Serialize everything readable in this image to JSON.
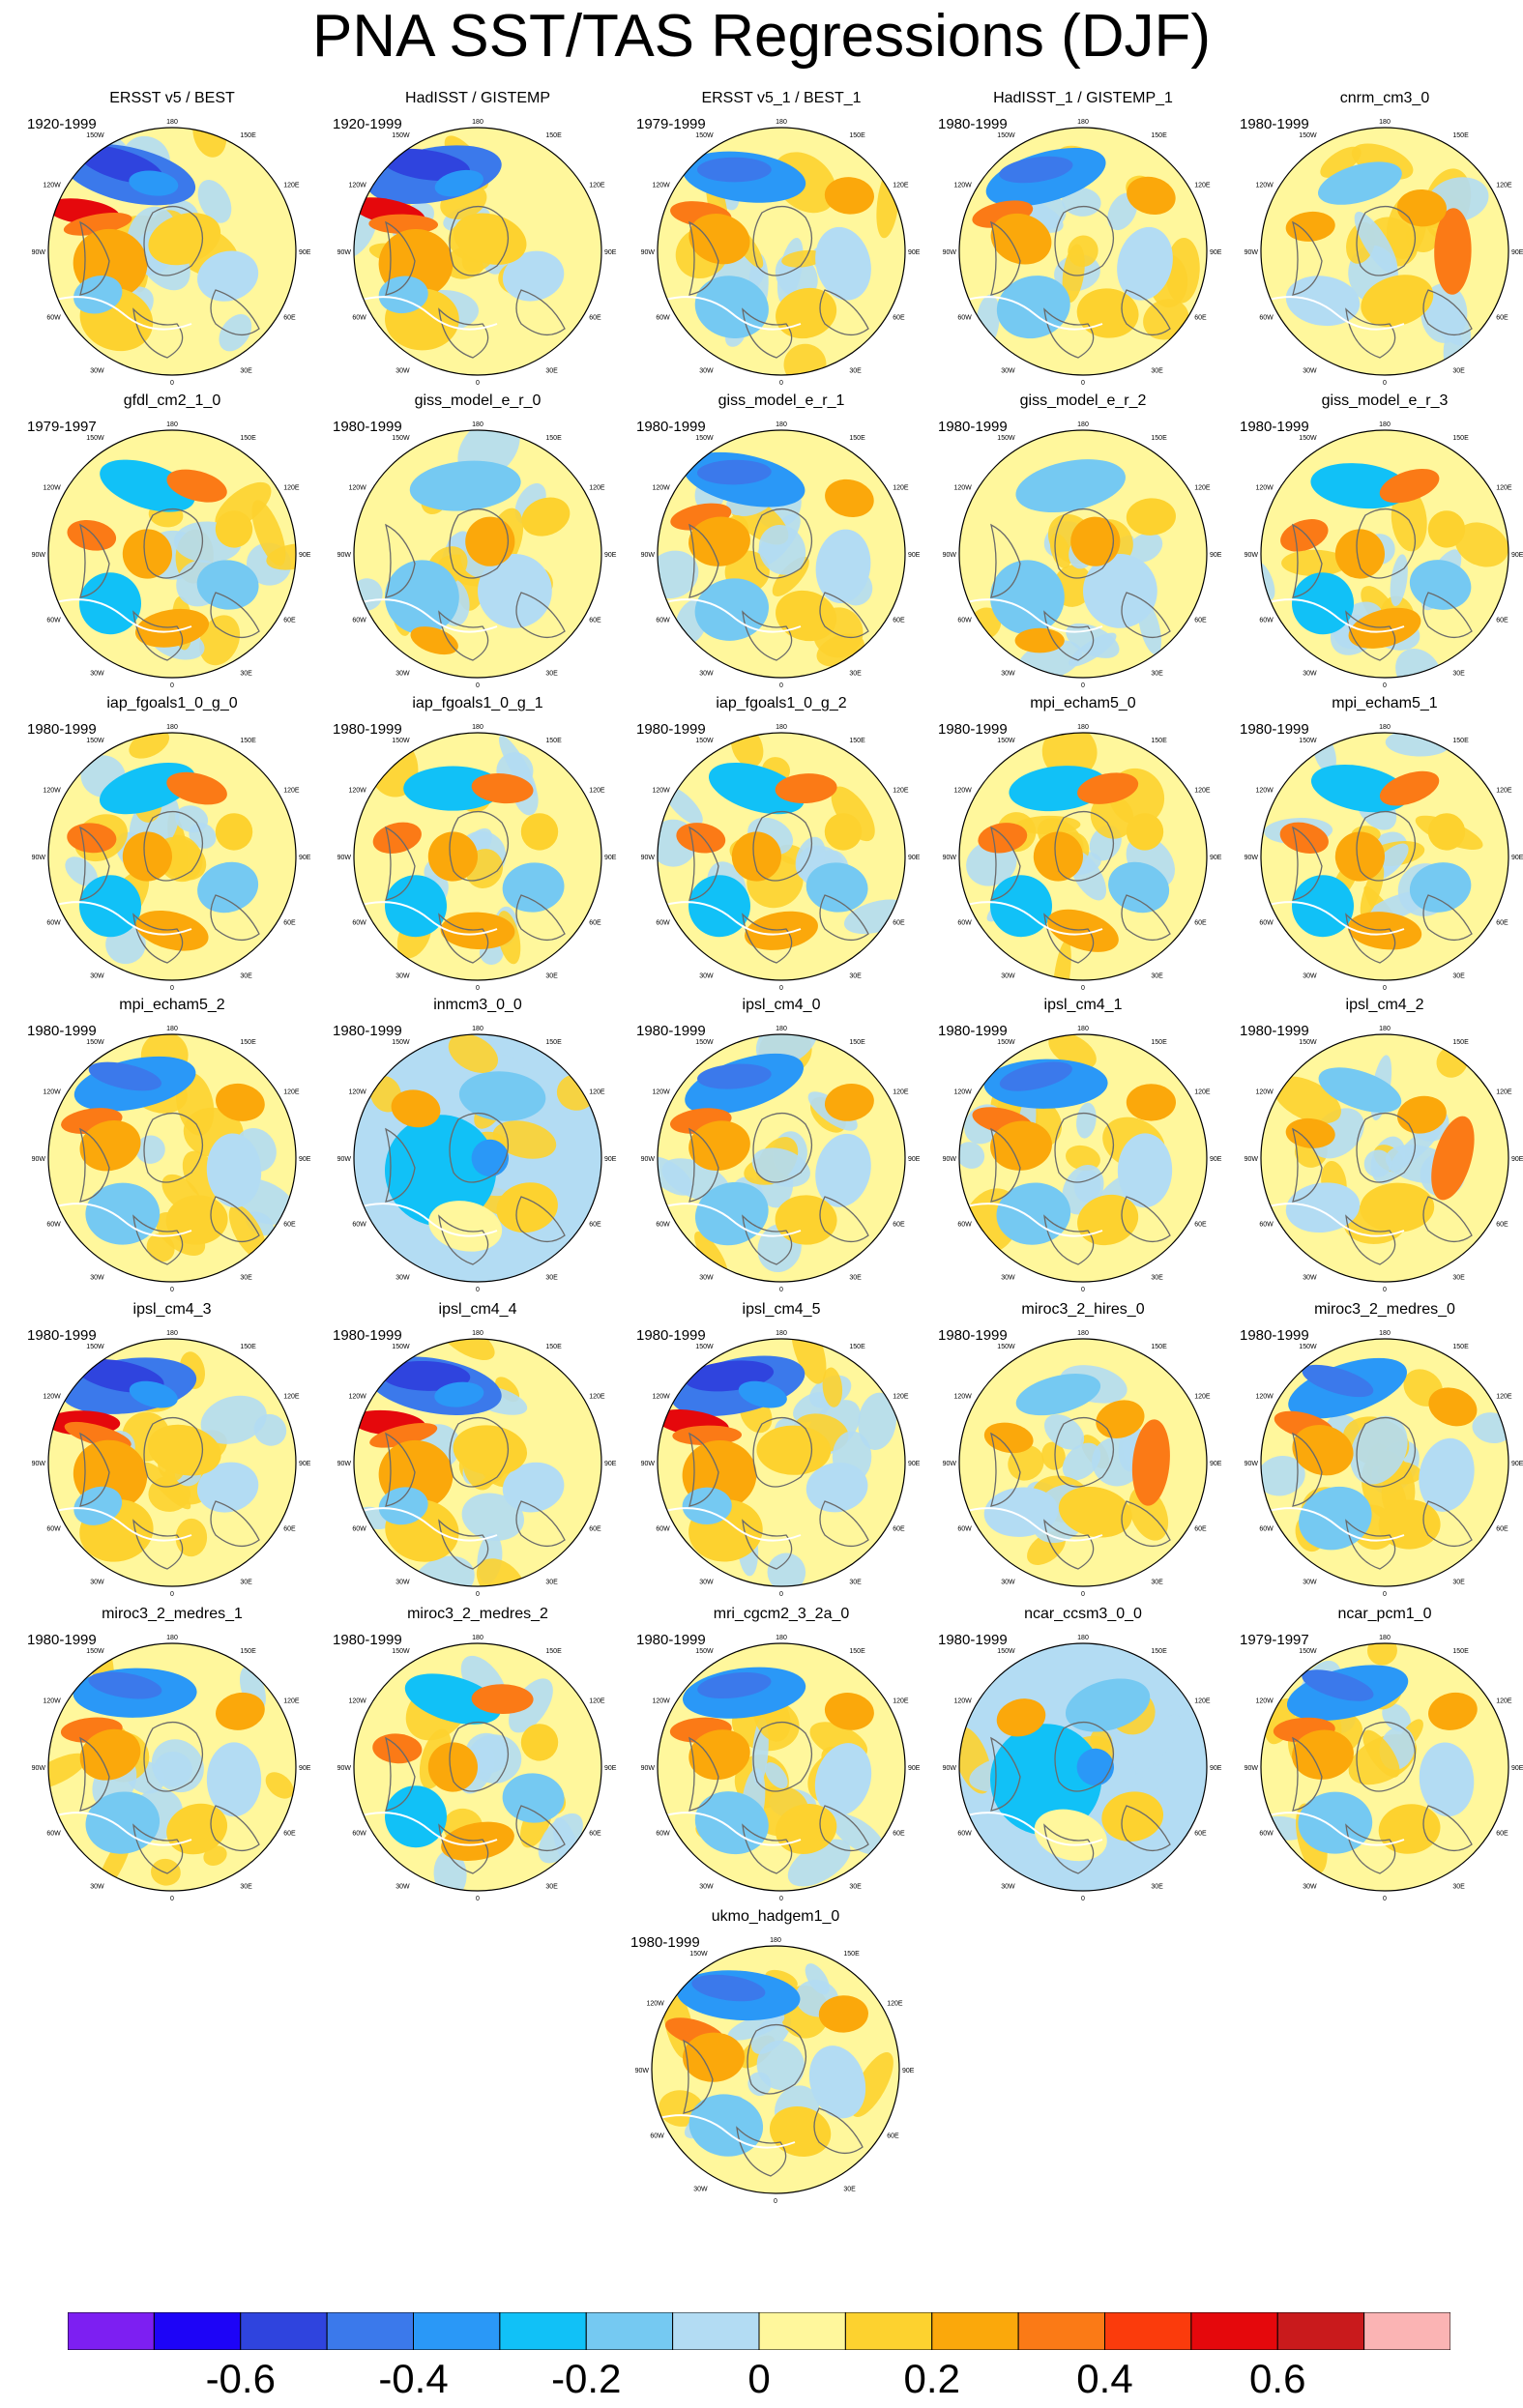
{
  "title": "PNA SST/TAS Regressions (DJF)",
  "map_labels": {
    "top": "180",
    "bottom": "0",
    "upper_left": "150W",
    "upper_right": "150E",
    "mid_left": "120W",
    "mid_right": "120E",
    "left": "90W",
    "right": "90E",
    "lower_left": "60W",
    "lower_right": "60E",
    "bottom_left": "30W",
    "bottom_right": "30E"
  },
  "panels": [
    {
      "title": "ERSST v5 / BEST",
      "period": "1920-1999",
      "pattern": "strong_pna"
    },
    {
      "title": "HadISST / GISTEMP",
      "period": "1920-1999",
      "pattern": "strong_pna"
    },
    {
      "title": "ERSST v5_1 / BEST_1",
      "period": "1979-1999",
      "pattern": "pna"
    },
    {
      "title": "HadISST_1 / GISTEMP_1",
      "period": "1980-1999",
      "pattern": "pna"
    },
    {
      "title": "cnrm_cm3_0",
      "period": "1980-1999",
      "pattern": "weak_warm"
    },
    {
      "title": "gfdl_cm2_1_0",
      "period": "1979-1997",
      "pattern": "mixed"
    },
    {
      "title": "giss_model_e_r_0",
      "period": "1980-1999",
      "pattern": "weak"
    },
    {
      "title": "giss_model_e_r_1",
      "period": "1980-1999",
      "pattern": "pna"
    },
    {
      "title": "giss_model_e_r_2",
      "period": "1980-1999",
      "pattern": "weak"
    },
    {
      "title": "giss_model_e_r_3",
      "period": "1980-1999",
      "pattern": "mixed"
    },
    {
      "title": "iap_fgoals1_0_g_0",
      "period": "1980-1999",
      "pattern": "mixed"
    },
    {
      "title": "iap_fgoals1_0_g_1",
      "period": "1980-1999",
      "pattern": "mixed"
    },
    {
      "title": "iap_fgoals1_0_g_2",
      "period": "1980-1999",
      "pattern": "mixed"
    },
    {
      "title": "mpi_echam5_0",
      "period": "1980-1999",
      "pattern": "mixed"
    },
    {
      "title": "mpi_echam5_1",
      "period": "1980-1999",
      "pattern": "mixed"
    },
    {
      "title": "mpi_echam5_2",
      "period": "1980-1999",
      "pattern": "pna"
    },
    {
      "title": "inmcm3_0_0",
      "period": "1980-1999",
      "pattern": "cool"
    },
    {
      "title": "ipsl_cm4_0",
      "period": "1980-1999",
      "pattern": "pna"
    },
    {
      "title": "ipsl_cm4_1",
      "period": "1980-1999",
      "pattern": "pna"
    },
    {
      "title": "ipsl_cm4_2",
      "period": "1980-1999",
      "pattern": "weak_warm"
    },
    {
      "title": "ipsl_cm4_3",
      "period": "1980-1999",
      "pattern": "strong_pna"
    },
    {
      "title": "ipsl_cm4_4",
      "period": "1980-1999",
      "pattern": "strong_pna"
    },
    {
      "title": "ipsl_cm4_5",
      "period": "1980-1999",
      "pattern": "strong_pna"
    },
    {
      "title": "miroc3_2_hires_0",
      "period": "1980-1999",
      "pattern": "weak_warm"
    },
    {
      "title": "miroc3_2_medres_0",
      "period": "1980-1999",
      "pattern": "pna"
    },
    {
      "title": "miroc3_2_medres_1",
      "period": "1980-1999",
      "pattern": "pna"
    },
    {
      "title": "miroc3_2_medres_2",
      "period": "1980-1999",
      "pattern": "mixed"
    },
    {
      "title": "mri_cgcm2_3_2a_0",
      "period": "1980-1999",
      "pattern": "pna"
    },
    {
      "title": "ncar_ccsm3_0_0",
      "period": "1980-1999",
      "pattern": "cool"
    },
    {
      "title": "ncar_pcm1_0",
      "period": "1979-1997",
      "pattern": "pna"
    },
    {
      "title": "ukmo_hadgem1_0",
      "period": "1980-1999",
      "pattern": "pna"
    }
  ],
  "colorbar": {
    "colors": [
      "#7d1ff2",
      "#1d04f7",
      "#2f44de",
      "#3b79eb",
      "#2a98f7",
      "#11c1f7",
      "#75c9f2",
      "#b3dcf3",
      "#fff79c",
      "#fdd22f",
      "#fba80b",
      "#fb7a16",
      "#fb3b0c",
      "#e5080c",
      "#c91a1c",
      "#fbb4b4"
    ],
    "labels": [
      "-0.6",
      "-0.4",
      "-0.2",
      "0",
      "0.2",
      "0.4",
      "0.6"
    ]
  }
}
